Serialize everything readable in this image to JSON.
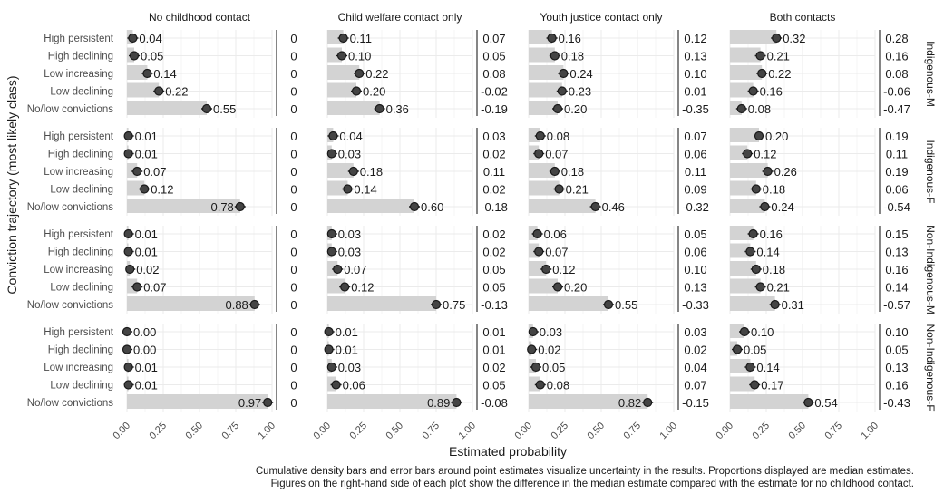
{
  "chart_data": {
    "type": "bar",
    "xlabel": "Estimated probability",
    "ylabel": "Conviction trajectory (most likely class)",
    "xlim": [
      0,
      1
    ],
    "x_ticks": [
      "0.00",
      "0.25",
      "0.50",
      "0.75",
      "1.00"
    ],
    "columns": [
      "No childhood contact",
      "Child welfare contact only",
      "Youth justice contact only",
      "Both contacts"
    ],
    "groups": [
      "Indigenous-M",
      "Indigenous-F",
      "Non-Indigenous-M",
      "Non-Indigenous-F"
    ],
    "categories": [
      "High persistent",
      "High declining",
      "Low increasing",
      "Low declining",
      "No/low convictions"
    ],
    "caption": [
      "Cumulative density bars and error bars around point estimates visualize uncertainty in the results. Proportions displayed are median estimates.",
      "Figures on the right-hand side of each plot show the difference in the median estimate compared with the estimate for no childhood contact."
    ],
    "colors": {
      "bar": "#d3d3d3",
      "point": "#1a1a1a",
      "grid": "#ebebeb",
      "text": "#1a1a1a",
      "axis_text": "#4d4d4d"
    },
    "grid": true,
    "panels": [
      [
        {
          "labels": [
            "0.04",
            "0.05",
            "0.14",
            "0.22",
            "0.55"
          ],
          "values": [
            0.04,
            0.05,
            0.14,
            0.22,
            0.55
          ],
          "diff": [
            "0",
            "0",
            "0",
            "0",
            "0"
          ]
        },
        {
          "labels": [
            "0.11",
            "0.10",
            "0.22",
            "0.20",
            "0.36"
          ],
          "values": [
            0.11,
            0.1,
            0.22,
            0.2,
            0.36
          ],
          "diff": [
            "0.07",
            "0.05",
            "0.08",
            "-0.02",
            "-0.19"
          ]
        },
        {
          "labels": [
            "0.16",
            "0.18",
            "0.24",
            "0.23",
            "0.20"
          ],
          "values": [
            0.16,
            0.18,
            0.24,
            0.23,
            0.2
          ],
          "diff": [
            "0.12",
            "0.13",
            "0.10",
            "0.01",
            "-0.35"
          ]
        },
        {
          "labels": [
            "0.32",
            "0.21",
            "0.22",
            "0.16",
            "0.08"
          ],
          "values": [
            0.32,
            0.21,
            0.22,
            0.16,
            0.08
          ],
          "diff": [
            "0.28",
            "0.16",
            "0.08",
            "-0.06",
            "-0.47"
          ]
        }
      ],
      [
        {
          "labels": [
            "0.01",
            "0.01",
            "0.07",
            "0.12",
            "0.78"
          ],
          "values": [
            0.01,
            0.01,
            0.07,
            0.12,
            0.78
          ],
          "diff": [
            "0",
            "0",
            "0",
            "0",
            "0"
          ]
        },
        {
          "labels": [
            "0.04",
            "0.03",
            "0.18",
            "0.14",
            "0.60"
          ],
          "values": [
            0.04,
            0.03,
            0.18,
            0.14,
            0.6
          ],
          "diff": [
            "0.03",
            "0.02",
            "0.11",
            "0.02",
            "-0.18"
          ]
        },
        {
          "labels": [
            "0.08",
            "0.07",
            "0.18",
            "0.21",
            "0.46"
          ],
          "values": [
            0.08,
            0.07,
            0.18,
            0.21,
            0.46
          ],
          "diff": [
            "0.07",
            "0.06",
            "0.11",
            "0.09",
            "-0.32"
          ]
        },
        {
          "labels": [
            "0.20",
            "0.12",
            "0.26",
            "0.18",
            "0.24"
          ],
          "values": [
            0.2,
            0.12,
            0.26,
            0.18,
            0.24
          ],
          "diff": [
            "0.19",
            "0.11",
            "0.19",
            "0.06",
            "-0.54"
          ]
        }
      ],
      [
        {
          "labels": [
            "0.01",
            "0.01",
            "0.02",
            "0.07",
            "0.88"
          ],
          "values": [
            0.01,
            0.01,
            0.02,
            0.07,
            0.88
          ],
          "diff": [
            "0",
            "0",
            "0",
            "0",
            "0"
          ]
        },
        {
          "labels": [
            "0.03",
            "0.03",
            "0.07",
            "0.12",
            "0.75"
          ],
          "values": [
            0.03,
            0.03,
            0.07,
            0.12,
            0.75
          ],
          "diff": [
            "0.02",
            "0.02",
            "0.05",
            "0.05",
            "-0.13"
          ]
        },
        {
          "labels": [
            "0.06",
            "0.07",
            "0.12",
            "0.20",
            "0.55"
          ],
          "values": [
            0.06,
            0.07,
            0.12,
            0.2,
            0.55
          ],
          "diff": [
            "0.05",
            "0.06",
            "0.10",
            "0.13",
            "-0.33"
          ]
        },
        {
          "labels": [
            "0.16",
            "0.14",
            "0.18",
            "0.21",
            "0.31"
          ],
          "values": [
            0.16,
            0.14,
            0.18,
            0.21,
            0.31
          ],
          "diff": [
            "0.15",
            "0.13",
            "0.16",
            "0.14",
            "-0.57"
          ]
        }
      ],
      [
        {
          "labels": [
            "0.00",
            "0.00",
            "0.01",
            "0.01",
            "0.97"
          ],
          "values": [
            0.0,
            0.0,
            0.01,
            0.01,
            0.97
          ],
          "diff": [
            "0",
            "0",
            "0",
            "0",
            "0"
          ]
        },
        {
          "labels": [
            "0.01",
            "0.01",
            "0.03",
            "0.06",
            "0.89"
          ],
          "values": [
            0.01,
            0.01,
            0.03,
            0.06,
            0.89
          ],
          "diff": [
            "0.01",
            "0.01",
            "0.02",
            "0.05",
            "-0.08"
          ]
        },
        {
          "labels": [
            "0.03",
            "0.02",
            "0.05",
            "0.08",
            "0.82"
          ],
          "values": [
            0.03,
            0.02,
            0.05,
            0.08,
            0.82
          ],
          "diff": [
            "0.03",
            "0.02",
            "0.04",
            "0.07",
            "-0.15"
          ]
        },
        {
          "labels": [
            "0.10",
            "0.05",
            "0.14",
            "0.17",
            "0.54"
          ],
          "values": [
            0.1,
            0.05,
            0.14,
            0.17,
            0.54
          ],
          "diff": [
            "0.10",
            "0.05",
            "0.13",
            "0.16",
            "-0.43"
          ]
        }
      ]
    ]
  }
}
